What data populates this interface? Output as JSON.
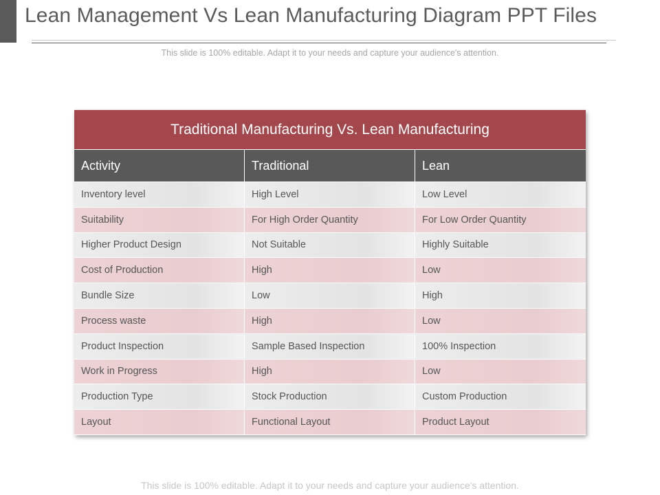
{
  "slide": {
    "title": "Lean Management Vs Lean Manufacturing Diagram PPT Files",
    "subtitle": "This slide is 100% editable. Adapt it to your needs and capture your audience's attention.",
    "footer": "This slide is 100% editable. Adapt it to your needs and capture your audience's attention."
  },
  "table": {
    "title": "Traditional Manufacturing Vs. Lean Manufacturing",
    "headers": [
      "Activity",
      "Traditional",
      "Lean"
    ],
    "rows": [
      [
        "Inventory  level",
        "High Level",
        "Low Level"
      ],
      [
        "Suitability",
        "For High Order Quantity",
        "For Low Order Quantity"
      ],
      [
        "Higher Product Design",
        "Not Suitable",
        "Highly Suitable"
      ],
      [
        "Cost of Production",
        "High",
        "Low"
      ],
      [
        "Bundle Size",
        "Low",
        "High"
      ],
      [
        "Process waste",
        "High",
        "Low"
      ],
      [
        "Product Inspection",
        "Sample Based Inspection",
        "100% Inspection"
      ],
      [
        "Work in Progress",
        "High",
        "Low"
      ],
      [
        "Production Type",
        "Stock Production",
        "Custom Production"
      ],
      [
        "Layout",
        "Functional Layout",
        "Product Layout"
      ]
    ]
  },
  "colors": {
    "title_bar": "#a3474d",
    "header_row": "#595959",
    "row_gray": "#e6e6e6",
    "row_pink": "#ebd0d2"
  }
}
